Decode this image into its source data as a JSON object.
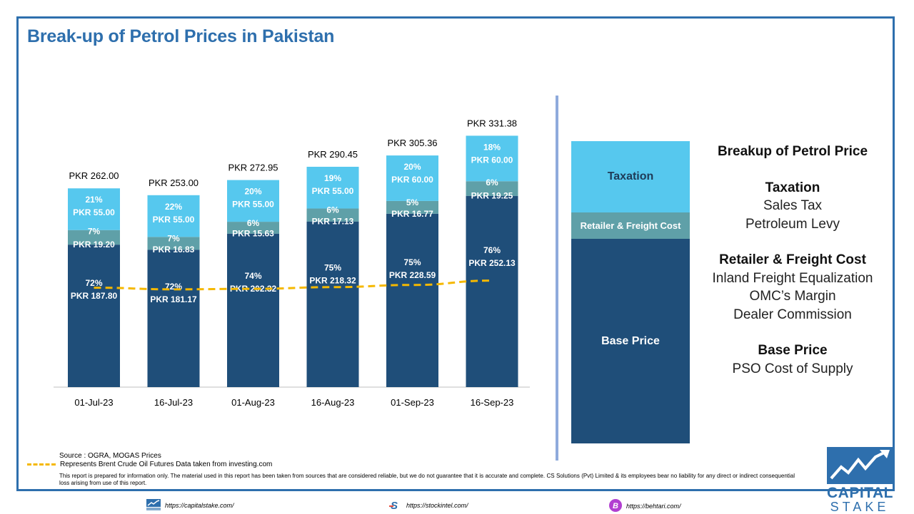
{
  "title": "Break-up of Petrol Prices in Pakistan",
  "chart_data": {
    "type": "bar",
    "stacked": true,
    "categories": [
      "01-Jul-23",
      "16-Jul-23",
      "01-Aug-23",
      "16-Aug-23",
      "01-Sep-23",
      "16-Sep-23"
    ],
    "totals": [
      "PKR 262.00",
      "PKR 253.00",
      "PKR 272.95",
      "PKR 290.45",
      "PKR 305.36",
      "PKR 331.38"
    ],
    "total_values": [
      262.0,
      253.0,
      272.95,
      290.45,
      305.36,
      331.38
    ],
    "series": [
      {
        "key": "base",
        "values": [
          187.8,
          181.17,
          202.32,
          218.32,
          228.59,
          252.13
        ],
        "labels": [
          "PKR 187.80",
          "PKR 181.17",
          "PKR 202.32",
          "PKR 218.32",
          "PKR 228.59",
          "PKR 252.13"
        ],
        "pct": [
          "72%",
          "72%",
          "74%",
          "75%",
          "75%",
          "76%"
        ],
        "color": "#1f4e79"
      },
      {
        "key": "retail",
        "values": [
          19.2,
          16.83,
          15.63,
          17.13,
          16.77,
          19.25
        ],
        "labels": [
          "PKR 19.20",
          "PKR 16.83",
          "PKR 15.63",
          "PKR 17.13",
          "PKR 16.77",
          "PKR 19.25"
        ],
        "pct": [
          "7%",
          "7%",
          "6%",
          "6%",
          "5%",
          "6%"
        ],
        "color": "#5fa0a8"
      },
      {
        "key": "tax",
        "values": [
          55.0,
          55.0,
          55.0,
          55.0,
          60.0,
          60.0
        ],
        "labels": [
          "PKR 55.00",
          "PKR 55.00",
          "PKR 55.00",
          "PKR 55.00",
          "PKR 60.00",
          "PKR 60.00"
        ],
        "pct": [
          "21%",
          "22%",
          "20%",
          "19%",
          "20%",
          "18%"
        ],
        "color": "#56c8ee"
      }
    ],
    "brent_line": {
      "values": [
        182,
        179,
        180,
        183,
        187,
        195
      ],
      "color": "#f5b800",
      "style": "dashed"
    },
    "ylim": [
      0,
      340
    ]
  },
  "legend_stack": {
    "tax": "Taxation",
    "retail": "Retailer & Freight Cost",
    "base": "Base Price"
  },
  "breakdown": {
    "heading": "Breakup of Petrol Price",
    "tax_heading": "Taxation",
    "tax_items": [
      "Sales Tax",
      "Petroleum Levy"
    ],
    "retail_heading": "Retailer & Freight Cost",
    "retail_items": [
      "Inland Freight Equalization",
      "OMC’s Margin",
      "Dealer Commission"
    ],
    "base_heading": "Base Price",
    "base_items": [
      "PSO Cost of Supply"
    ]
  },
  "source": "Source : OGRA, MOGAS Prices",
  "brent_note": "Represents Brent Crude Oil Futures Data taken from investing.com",
  "disclaimer": "This report is prepared for information only. The material used in this report has been taken from sources that are considered reliable, but we do not guarantee that it is accurate and complete. CS Solutions (Pvt) Limited & its employees bear no liability for any direct or indirect consequential loss arising from use of this report.",
  "logo": {
    "line1": "CAPITAL",
    "line2": "STAKE"
  },
  "footer": {
    "link1": "https://capitalstake.com/",
    "link2": "https://stockintel.com/",
    "link3": "https://behtari.com/"
  }
}
